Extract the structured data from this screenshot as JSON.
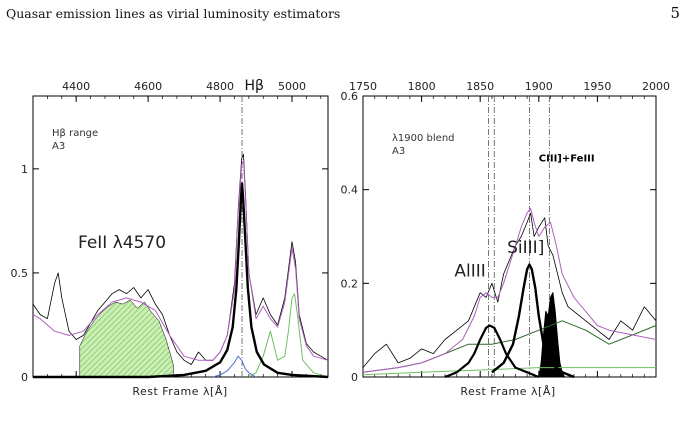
{
  "header": {
    "title": "Quasar emission lines as virial luminosity estimators",
    "page_number": "5"
  },
  "colors": {
    "black": "#000000",
    "magenta": "#b060c0",
    "green": "#6fc060",
    "darkgreen": "#2f6a2a",
    "olive": "#9a8a30",
    "blue": "#4a6fd0",
    "hatch": "#7ccc5a"
  },
  "chart_data": [
    {
      "type": "line",
      "panel": "left",
      "note_line1": "Hβ range",
      "note_line2": "A3",
      "xlabel": "Rest Frame λ[Å]",
      "xlim": [
        4280,
        5100
      ],
      "ylim": [
        0,
        1.35
      ],
      "xticks": [
        4400,
        4600,
        4800,
        5000
      ],
      "yticks": [
        {
          "v": 0,
          "label": "0"
        },
        {
          "v": 0.5,
          "label": "0.5"
        },
        {
          "v": 1,
          "label": "1"
        }
      ],
      "vlines": [
        4861
      ],
      "labels": {
        "feii": "FeII λ4570",
        "hbeta": "Hβ"
      },
      "label_positions": {
        "feii": [
          4405,
          0.62
        ],
        "hbeta": [
          4868,
          1.38
        ]
      },
      "series": [
        {
          "role": "observed",
          "x": [
            4280,
            4300,
            4320,
            4340,
            4350,
            4360,
            4380,
            4400,
            4420,
            4440,
            4460,
            4480,
            4500,
            4520,
            4540,
            4560,
            4580,
            4600,
            4620,
            4640,
            4660,
            4680,
            4700,
            4720,
            4740,
            4760,
            4780,
            4800,
            4820,
            4840,
            4850,
            4860,
            4865,
            4870,
            4880,
            4900,
            4920,
            4940,
            4960,
            4980,
            5000,
            5010,
            5020,
            5040,
            5060,
            5080,
            5100
          ],
          "y": [
            0.35,
            0.3,
            0.28,
            0.45,
            0.5,
            0.38,
            0.22,
            0.18,
            0.2,
            0.26,
            0.32,
            0.36,
            0.4,
            0.42,
            0.4,
            0.43,
            0.38,
            0.42,
            0.35,
            0.3,
            0.2,
            0.12,
            0.08,
            0.06,
            0.12,
            0.08,
            0.08,
            0.12,
            0.2,
            0.45,
            0.8,
            1.05,
            1.07,
            0.9,
            0.5,
            0.3,
            0.38,
            0.3,
            0.25,
            0.38,
            0.65,
            0.55,
            0.3,
            0.16,
            0.12,
            0.1,
            0.08
          ]
        },
        {
          "role": "model",
          "x": [
            4280,
            4300,
            4340,
            4380,
            4420,
            4460,
            4500,
            4540,
            4580,
            4620,
            4660,
            4700,
            4740,
            4780,
            4800,
            4820,
            4840,
            4850,
            4860,
            4865,
            4870,
            4880,
            4900,
            4920,
            4940,
            4960,
            4980,
            5000,
            5010,
            5020,
            5040,
            5060,
            5100
          ],
          "y": [
            0.3,
            0.28,
            0.22,
            0.2,
            0.22,
            0.3,
            0.36,
            0.38,
            0.36,
            0.32,
            0.2,
            0.1,
            0.08,
            0.08,
            0.12,
            0.2,
            0.42,
            0.78,
            1.02,
            1.04,
            0.88,
            0.5,
            0.28,
            0.34,
            0.28,
            0.24,
            0.36,
            0.62,
            0.52,
            0.28,
            0.15,
            0.1,
            0.08
          ]
        },
        {
          "role": "hbeta_broad",
          "x": [
            4280,
            4600,
            4700,
            4760,
            4800,
            4820,
            4835,
            4845,
            4852,
            4858,
            4861,
            4864,
            4870,
            4877,
            4887,
            4902,
            4922,
            4960,
            5000,
            5100
          ],
          "y": [
            0,
            0,
            0.01,
            0.03,
            0.07,
            0.13,
            0.24,
            0.42,
            0.64,
            0.85,
            0.93,
            0.86,
            0.66,
            0.43,
            0.24,
            0.12,
            0.06,
            0.02,
            0.01,
            0
          ]
        },
        {
          "role": "oiii_green",
          "x": [
            4880,
            4900,
            4920,
            4940,
            4960,
            4980,
            4990,
            5000,
            5007,
            5015,
            5030,
            5060,
            5100
          ],
          "y": [
            0,
            0.02,
            0.1,
            0.22,
            0.08,
            0.1,
            0.22,
            0.38,
            0.4,
            0.3,
            0.08,
            0.02,
            0
          ]
        },
        {
          "role": "blue_comp",
          "x": [
            4780,
            4800,
            4820,
            4840,
            4850,
            4860,
            4870,
            4880,
            4900
          ],
          "y": [
            0,
            0.01,
            0.03,
            0.07,
            0.1,
            0.08,
            0.04,
            0.02,
            0
          ]
        },
        {
          "role": "feii_hatched",
          "x": [
            4410,
            4430,
            4450,
            4470,
            4490,
            4510,
            4530,
            4550,
            4570,
            4590,
            4610,
            4630,
            4650,
            4670
          ],
          "y": [
            0.15,
            0.22,
            0.27,
            0.31,
            0.34,
            0.36,
            0.35,
            0.37,
            0.33,
            0.36,
            0.31,
            0.27,
            0.18,
            0.06
          ]
        }
      ]
    },
    {
      "type": "line",
      "panel": "right",
      "note_line1": "λ1900 blend",
      "note_line2": "A3",
      "xlabel": "Rest Frame λ[Å]",
      "xlim": [
        1750,
        2000
      ],
      "ylim": [
        0,
        0.6
      ],
      "xticks": [
        1750,
        1800,
        1850,
        1900,
        1950,
        2000
      ],
      "yticks": [
        {
          "v": 0,
          "label": "0"
        },
        {
          "v": 0.2,
          "label": "0.2"
        },
        {
          "v": 0.4,
          "label": "0.4"
        },
        {
          "v": 0.6,
          "label": "0.6"
        }
      ],
      "vlines": [
        1857,
        1862,
        1892,
        1909
      ],
      "labels": {
        "aliii": "AlIII",
        "siiii": "SiIII]",
        "ciii": "CIII]+FeIII"
      },
      "label_positions": {
        "aliii": [
          1828,
          0.215
        ],
        "siiii": [
          1873,
          0.265
        ],
        "ciii": [
          1900,
          0.46
        ]
      },
      "series": [
        {
          "role": "observed",
          "x": [
            1750,
            1760,
            1770,
            1780,
            1790,
            1800,
            1810,
            1820,
            1830,
            1840,
            1845,
            1850,
            1855,
            1860,
            1865,
            1870,
            1875,
            1880,
            1885,
            1890,
            1893,
            1896,
            1900,
            1905,
            1908,
            1912,
            1916,
            1920,
            1925,
            1930,
            1940,
            1950,
            1960,
            1970,
            1980,
            1990,
            2000
          ],
          "y": [
            0.02,
            0.05,
            0.07,
            0.03,
            0.04,
            0.06,
            0.05,
            0.08,
            0.1,
            0.12,
            0.15,
            0.18,
            0.17,
            0.2,
            0.16,
            0.22,
            0.25,
            0.28,
            0.3,
            0.33,
            0.35,
            0.3,
            0.32,
            0.34,
            0.28,
            0.26,
            0.22,
            0.18,
            0.15,
            0.14,
            0.12,
            0.1,
            0.08,
            0.12,
            0.1,
            0.15,
            0.12
          ]
        },
        {
          "role": "model",
          "x": [
            1750,
            1780,
            1800,
            1820,
            1835,
            1845,
            1850,
            1855,
            1860,
            1865,
            1870,
            1875,
            1880,
            1885,
            1890,
            1893,
            1896,
            1900,
            1905,
            1910,
            1915,
            1920,
            1930,
            1940,
            1950,
            1960,
            1980,
            2000
          ],
          "y": [
            0.01,
            0.02,
            0.03,
            0.05,
            0.08,
            0.13,
            0.17,
            0.18,
            0.17,
            0.17,
            0.2,
            0.24,
            0.28,
            0.32,
            0.35,
            0.36,
            0.33,
            0.3,
            0.32,
            0.33,
            0.28,
            0.22,
            0.17,
            0.14,
            0.11,
            0.1,
            0.09,
            0.08
          ]
        },
        {
          "role": "aliii",
          "x": [
            1820,
            1830,
            1840,
            1845,
            1850,
            1855,
            1858,
            1862,
            1867,
            1872,
            1880,
            1890,
            1900
          ],
          "y": [
            0,
            0.01,
            0.03,
            0.05,
            0.08,
            0.105,
            0.11,
            0.105,
            0.08,
            0.05,
            0.02,
            0.01,
            0
          ]
        },
        {
          "role": "siiii",
          "x": [
            1860,
            1870,
            1878,
            1883,
            1887,
            1890,
            1892,
            1894,
            1897,
            1900,
            1904,
            1910,
            1920,
            1930
          ],
          "y": [
            0.01,
            0.03,
            0.07,
            0.13,
            0.19,
            0.23,
            0.24,
            0.23,
            0.19,
            0.13,
            0.07,
            0.03,
            0.01,
            0
          ]
        },
        {
          "role": "ciii_black",
          "x": [
            1900,
            1902,
            1904,
            1906,
            1908,
            1910,
            1912,
            1914,
            1916,
            1918,
            1920,
            1922
          ],
          "y": [
            0,
            0.03,
            0.09,
            0.14,
            0.13,
            0.17,
            0.18,
            0.14,
            0.08,
            0.03,
            0.01,
            0
          ]
        },
        {
          "role": "green_dark",
          "x": [
            1750,
            1780,
            1800,
            1820,
            1840,
            1860,
            1880,
            1900,
            1920,
            1940,
            1960,
            1980,
            2000
          ],
          "y": [
            0.01,
            0.02,
            0.03,
            0.05,
            0.07,
            0.07,
            0.08,
            0.1,
            0.12,
            0.1,
            0.07,
            0.09,
            0.11
          ]
        },
        {
          "role": "green_light",
          "x": [
            1750,
            1800,
            1850,
            1900,
            1950,
            2000
          ],
          "y": [
            0.005,
            0.01,
            0.015,
            0.02,
            0.02,
            0.02
          ]
        }
      ]
    }
  ]
}
